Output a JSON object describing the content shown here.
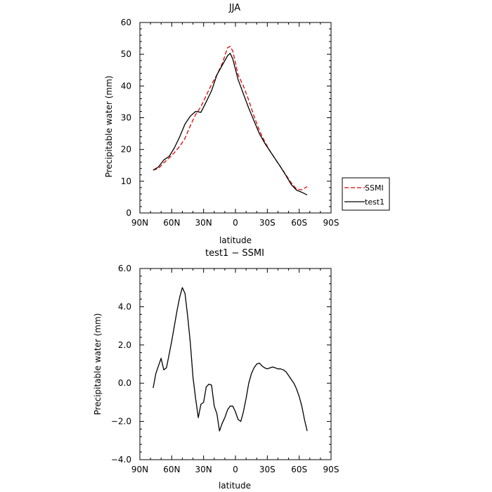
{
  "chart_data": [
    {
      "type": "line",
      "title": "JJA",
      "xlabel": "latitude",
      "ylabel": "Precipitable water (mm)",
      "xlim": [
        90,
        -90
      ],
      "ylim": [
        0,
        60
      ],
      "x_unit_note": "latitude degrees, positive = N",
      "xticks": [
        90,
        60,
        30,
        0,
        -30,
        -60,
        -90
      ],
      "xticklabels": [
        "90N",
        "60N",
        "30N",
        "0",
        "30S",
        "60S",
        "90S"
      ],
      "yticks": [
        0,
        10,
        20,
        30,
        40,
        50,
        60
      ],
      "yticklabels": [
        "0",
        "10",
        "20",
        "30",
        "40",
        "50",
        "60"
      ],
      "legend": {
        "placement": "right-bottom-outside"
      },
      "series": [
        {
          "name": "SSMI",
          "color": "#e00000",
          "dash": "dashed",
          "x": [
            77.5,
            72.5,
            67.5,
            62.5,
            57.5,
            52.5,
            47.5,
            42.5,
            37.5,
            32.5,
            27.5,
            22.5,
            17.5,
            12.5,
            7.5,
            5.0,
            2.5,
            -2.5,
            -7.5,
            -12.5,
            -17.5,
            -22.5,
            -27.5,
            -32.5,
            -37.5,
            -42.5,
            -47.5,
            -52.5,
            -57.5,
            -62.5,
            -67.5
          ],
          "y": [
            13.5,
            14.0,
            15.8,
            17.3,
            19.0,
            21.0,
            23.5,
            27.5,
            31.0,
            33.5,
            37.0,
            40.5,
            43.5,
            47.0,
            52.0,
            52.5,
            51.0,
            43.5,
            40.0,
            35.5,
            30.5,
            26.0,
            22.5,
            19.5,
            17.0,
            14.5,
            12.0,
            9.5,
            7.5,
            7.3,
            8.3
          ]
        },
        {
          "name": "test1",
          "color": "#000000",
          "dash": "solid",
          "x": [
            77.5,
            72.5,
            67.5,
            62.5,
            57.5,
            52.5,
            47.5,
            42.5,
            37.5,
            32.5,
            27.5,
            22.5,
            17.5,
            12.5,
            7.5,
            5.0,
            2.5,
            -2.5,
            -7.5,
            -12.5,
            -17.5,
            -22.5,
            -27.5,
            -32.5,
            -37.5,
            -42.5,
            -47.5,
            -52.5,
            -57.5,
            -62.5,
            -67.5
          ],
          "y": [
            13.5,
            14.5,
            16.7,
            17.8,
            20.5,
            24.0,
            28.0,
            30.5,
            32.0,
            31.7,
            35.0,
            38.5,
            43.5,
            46.5,
            49.5,
            50.3,
            48.5,
            42.0,
            37.5,
            33.0,
            29.0,
            25.0,
            22.0,
            19.5,
            17.0,
            14.5,
            11.8,
            9.0,
            7.2,
            6.5,
            5.7
          ]
        }
      ]
    },
    {
      "type": "line",
      "title": "test1  −  SSMI",
      "xlabel": "latitude",
      "ylabel": "Precipitable water (mm)",
      "xlim": [
        90,
        -90
      ],
      "ylim": [
        -4.0,
        6.0
      ],
      "xticks": [
        90,
        60,
        30,
        0,
        -30,
        -60,
        -90
      ],
      "xticklabels": [
        "90N",
        "60N",
        "30N",
        "0",
        "30S",
        "60S",
        "90S"
      ],
      "yticks": [
        -4.0,
        -2.0,
        0.0,
        2.0,
        4.0,
        6.0
      ],
      "yticklabels": [
        "−4.0",
        "−2.0",
        "0.0",
        "2.0",
        "4.0",
        "6.0"
      ],
      "series": [
        {
          "color": "#000000",
          "dash": "solid",
          "x": [
            77.5,
            75,
            72.5,
            70,
            67.5,
            65,
            62.5,
            60,
            57.5,
            55,
            52.5,
            50,
            47.5,
            45,
            42.5,
            40,
            37.5,
            35,
            32.5,
            30,
            27.5,
            25,
            22.5,
            20,
            17.5,
            15,
            12.5,
            10,
            7.5,
            5,
            2.5,
            0,
            -2.5,
            -5,
            -7.5,
            -10,
            -12.5,
            -15,
            -17.5,
            -20,
            -22.5,
            -25,
            -27.5,
            -30,
            -32.5,
            -35,
            -37.5,
            -40,
            -42.5,
            -45,
            -47.5,
            -50,
            -52.5,
            -55,
            -57.5,
            -60,
            -62.5,
            -65,
            -67.5
          ],
          "y": [
            -0.25,
            0.5,
            0.9,
            1.3,
            0.7,
            0.8,
            1.5,
            2.2,
            3.0,
            3.8,
            4.5,
            5.0,
            4.7,
            3.5,
            2.1,
            0.3,
            -0.8,
            -1.8,
            -1.1,
            -1.0,
            -0.2,
            -0.05,
            -0.1,
            -1.2,
            -1.6,
            -2.5,
            -2.1,
            -1.8,
            -1.4,
            -1.2,
            -1.2,
            -1.5,
            -1.9,
            -2.0,
            -1.5,
            -0.8,
            0.0,
            0.5,
            0.8,
            1.0,
            1.05,
            0.9,
            0.8,
            0.75,
            0.8,
            0.85,
            0.8,
            0.75,
            0.75,
            0.7,
            0.6,
            0.4,
            0.2,
            0.0,
            -0.3,
            -0.7,
            -1.2,
            -1.9,
            -2.5
          ]
        }
      ]
    }
  ]
}
